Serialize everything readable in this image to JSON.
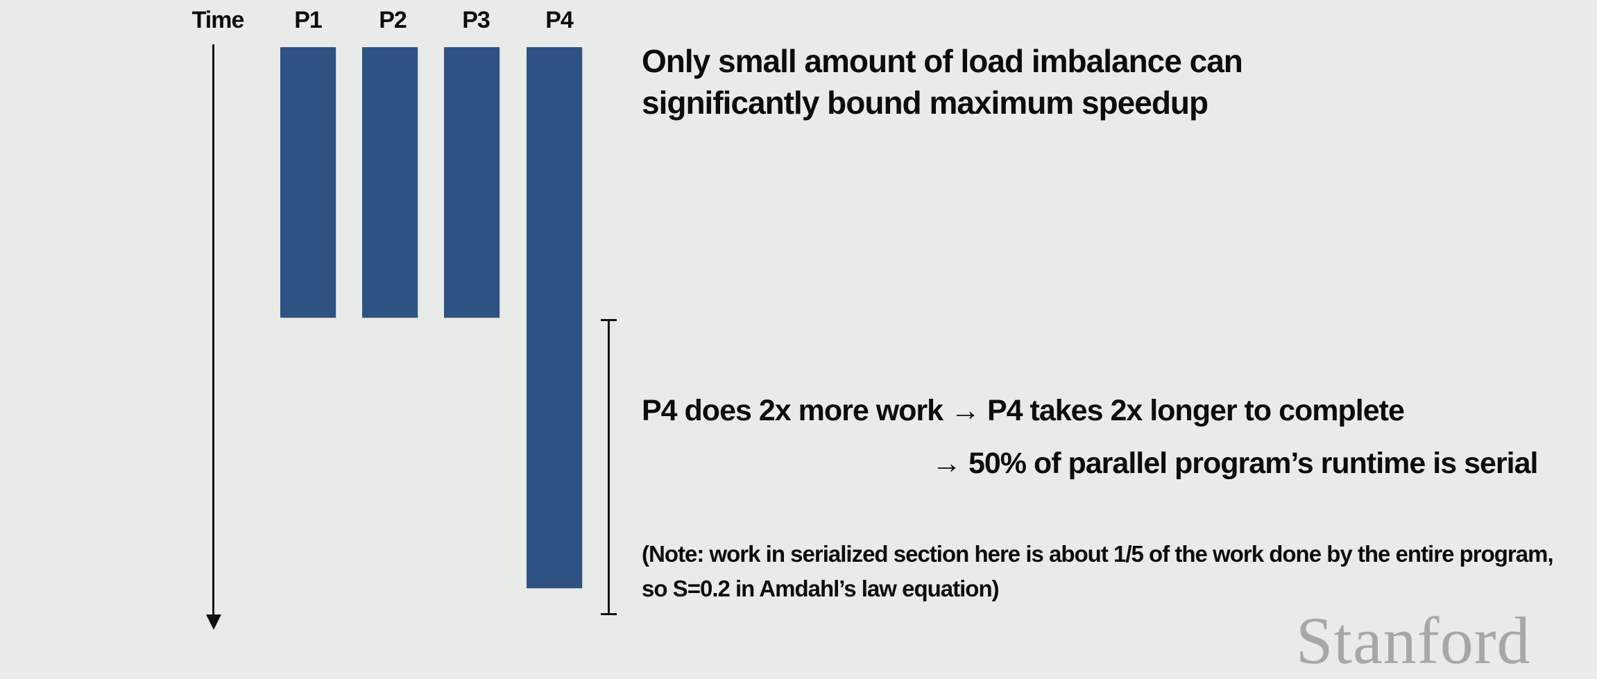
{
  "diagram": {
    "time_label": "Time",
    "processors": [
      {
        "label": "P1",
        "relative_work": 1
      },
      {
        "label": "P2",
        "relative_work": 1
      },
      {
        "label": "P3",
        "relative_work": 1
      },
      {
        "label": "P4",
        "relative_work": 2
      }
    ],
    "bar_color": "#2e5283"
  },
  "text": {
    "headline": [
      "Only small amount of load imbalance can",
      "significantly bound maximum speedup"
    ],
    "point1": "P4 does 2x more work → P4 takes 2x longer to complete",
    "point2": "→ 50% of parallel program’s runtime is serial",
    "note": [
      "(Note: work in serialized section here is about 1/5 of the work done by the entire program,",
      "so S=0.2 in Amdahl’s law equation)"
    ]
  },
  "watermark": "Stanford"
}
